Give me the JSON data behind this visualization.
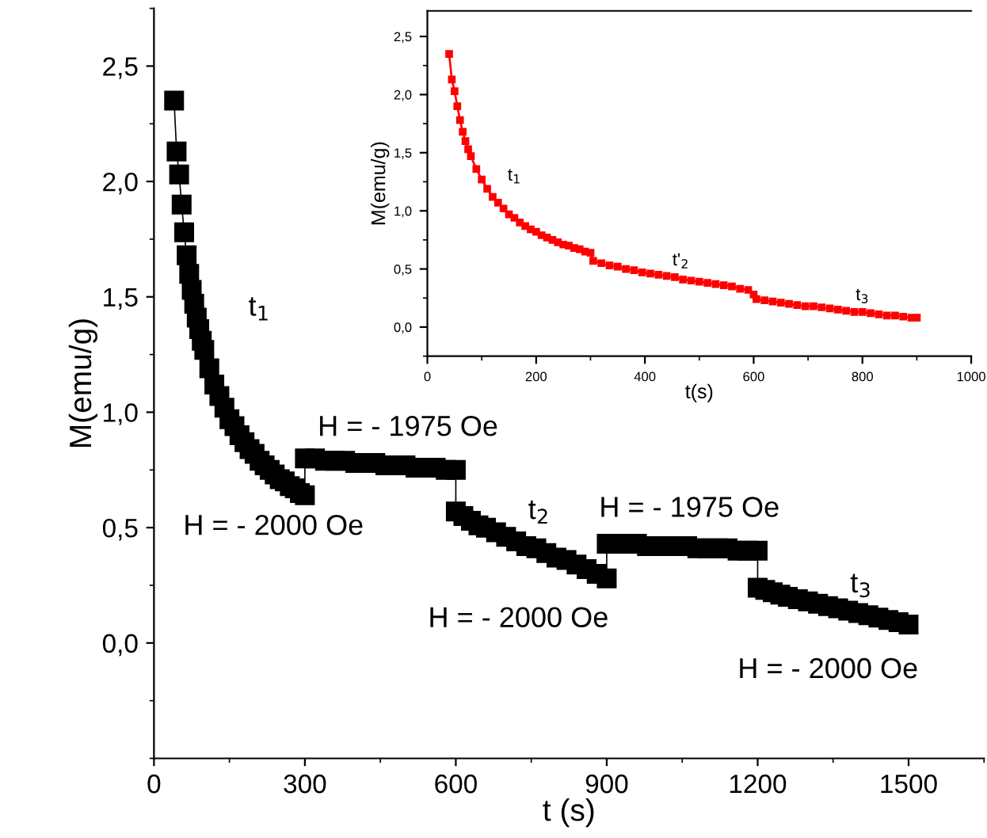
{
  "chart_data": [
    {
      "type": "line",
      "xlabel": "t (s)",
      "ylabel": "M(emu/g)",
      "marker": "square",
      "line_style": "solid",
      "grid": false,
      "legend": false,
      "xlim": [
        0,
        1650
      ],
      "ylim": [
        -0.5,
        2.75
      ],
      "xticks": [
        0,
        300,
        600,
        900,
        1200,
        1500
      ],
      "yticks": [
        {
          "value": 0,
          "label": "0,0"
        },
        {
          "value": 0.5,
          "label": "0,5"
        },
        {
          "value": 1.0,
          "label": "1,0"
        },
        {
          "value": 1.5,
          "label": "1,5"
        },
        {
          "value": 2.0,
          "label": "2,0"
        },
        {
          "value": 2.5,
          "label": "2,5"
        }
      ],
      "series": [
        {
          "color": "#000000",
          "x": [
            40,
            45,
            50,
            55,
            60,
            65,
            70,
            75,
            80,
            85,
            90,
            95,
            100,
            110,
            120,
            130,
            140,
            150,
            160,
            170,
            180,
            190,
            200,
            210,
            220,
            230,
            240,
            250,
            260,
            270,
            280,
            290,
            300,
            300,
            320,
            340,
            360,
            380,
            400,
            420,
            440,
            460,
            480,
            500,
            520,
            540,
            560,
            580,
            600,
            600,
            615,
            630,
            645,
            660,
            680,
            700,
            720,
            740,
            760,
            780,
            800,
            820,
            840,
            860,
            880,
            900,
            900,
            920,
            940,
            960,
            980,
            1000,
            1020,
            1040,
            1060,
            1080,
            1100,
            1120,
            1140,
            1160,
            1180,
            1200,
            1200,
            1215,
            1230,
            1245,
            1260,
            1280,
            1300,
            1320,
            1340,
            1360,
            1380,
            1400,
            1420,
            1440,
            1460,
            1480,
            1500
          ],
          "values": [
            2.35,
            2.13,
            2.03,
            1.9,
            1.78,
            1.68,
            1.6,
            1.53,
            1.47,
            1.41,
            1.36,
            1.31,
            1.27,
            1.19,
            1.12,
            1.07,
            1.02,
            0.97,
            0.94,
            0.9,
            0.87,
            0.84,
            0.82,
            0.79,
            0.77,
            0.75,
            0.73,
            0.71,
            0.7,
            0.68,
            0.67,
            0.65,
            0.64,
            0.8,
            0.8,
            0.79,
            0.79,
            0.79,
            0.78,
            0.78,
            0.78,
            0.77,
            0.77,
            0.77,
            0.76,
            0.76,
            0.76,
            0.75,
            0.75,
            0.57,
            0.55,
            0.53,
            0.51,
            0.5,
            0.48,
            0.46,
            0.44,
            0.42,
            0.41,
            0.39,
            0.37,
            0.36,
            0.34,
            0.32,
            0.3,
            0.28,
            0.43,
            0.43,
            0.43,
            0.43,
            0.42,
            0.42,
            0.42,
            0.42,
            0.42,
            0.41,
            0.41,
            0.41,
            0.41,
            0.4,
            0.4,
            0.4,
            0.24,
            0.23,
            0.22,
            0.21,
            0.2,
            0.19,
            0.18,
            0.17,
            0.16,
            0.15,
            0.14,
            0.13,
            0.12,
            0.11,
            0.1,
            0.09,
            0.08
          ]
        }
      ],
      "annotations": [
        "t$_{1}$",
        "H = - 1975 Oe",
        "H = - 2000 Oe",
        "t$_{2}$",
        "H = - 1975 Oe",
        "H = - 2000 Oe",
        "t$_{3}$",
        "H = - 2000 Oe"
      ]
    },
    {
      "type": "line",
      "xlabel": "t(s)",
      "ylabel": "M(emu/g)",
      "marker": "square",
      "line_style": "solid",
      "grid": false,
      "legend": false,
      "xlim": [
        0,
        1000
      ],
      "ylim": [
        -0.25,
        2.72
      ],
      "xticks": [
        0,
        200,
        400,
        600,
        800,
        1000
      ],
      "yticks": [
        {
          "value": 0,
          "label": "0,0"
        },
        {
          "value": 0.5,
          "label": "0,5"
        },
        {
          "value": 1.0,
          "label": "1,0"
        },
        {
          "value": 1.5,
          "label": "1,5"
        },
        {
          "value": 2.0,
          "label": "2,0"
        },
        {
          "value": 2.5,
          "label": "2,5"
        }
      ],
      "series": [
        {
          "color": "#ff0000",
          "x": [
            40,
            45,
            50,
            55,
            60,
            65,
            70,
            75,
            80,
            90,
            100,
            110,
            120,
            130,
            140,
            150,
            160,
            170,
            180,
            190,
            200,
            210,
            220,
            230,
            240,
            250,
            260,
            270,
            280,
            290,
            300,
            305,
            320,
            335,
            350,
            365,
            380,
            395,
            410,
            425,
            440,
            455,
            470,
            485,
            500,
            515,
            530,
            545,
            560,
            575,
            590,
            600,
            605,
            620,
            635,
            650,
            665,
            680,
            695,
            710,
            725,
            740,
            755,
            770,
            785,
            800,
            815,
            830,
            845,
            860,
            875,
            890,
            900
          ],
          "values": [
            2.35,
            2.13,
            2.03,
            1.9,
            1.78,
            1.68,
            1.6,
            1.53,
            1.47,
            1.36,
            1.27,
            1.19,
            1.12,
            1.07,
            1.02,
            0.97,
            0.94,
            0.9,
            0.87,
            0.84,
            0.82,
            0.79,
            0.77,
            0.75,
            0.73,
            0.71,
            0.7,
            0.68,
            0.67,
            0.65,
            0.64,
            0.57,
            0.55,
            0.53,
            0.52,
            0.5,
            0.49,
            0.47,
            0.46,
            0.45,
            0.44,
            0.43,
            0.41,
            0.4,
            0.39,
            0.38,
            0.37,
            0.36,
            0.35,
            0.33,
            0.32,
            0.28,
            0.24,
            0.23,
            0.22,
            0.21,
            0.2,
            0.19,
            0.18,
            0.18,
            0.17,
            0.16,
            0.15,
            0.14,
            0.13,
            0.13,
            0.12,
            0.11,
            0.1,
            0.1,
            0.09,
            0.08,
            0.08
          ]
        }
      ],
      "annotations": [
        "t$_{1}$",
        "t'$_{2}$",
        "t$_{3}$"
      ]
    }
  ]
}
